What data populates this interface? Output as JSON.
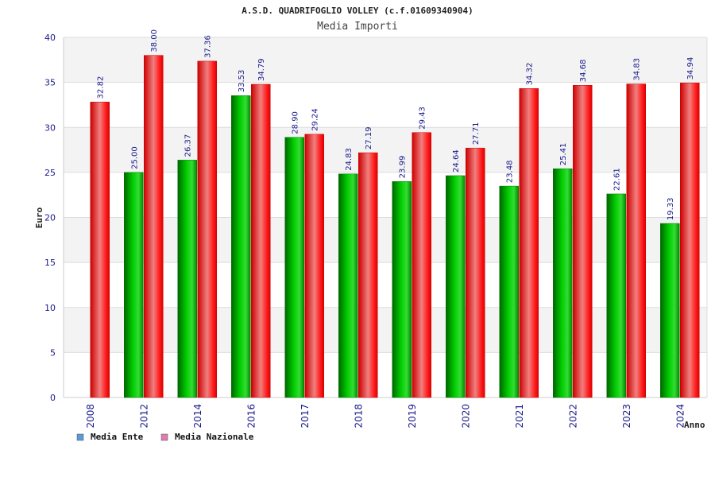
{
  "chart_data": {
    "type": "bar",
    "title": "A.S.D. QUADRIFOGLIO VOLLEY (c.f.01609340904)",
    "subtitle": "Media Importi",
    "xlabel": "Anno",
    "ylabel": "Euro",
    "ylim": [
      0,
      40
    ],
    "yticks": [
      0,
      5,
      10,
      15,
      20,
      25,
      30,
      35,
      40
    ],
    "grid": true,
    "legend_position": "bottom-left",
    "categories": [
      "2008",
      "2012",
      "2014",
      "2016",
      "2017",
      "2018",
      "2019",
      "2020",
      "2021",
      "2022",
      "2023",
      "2024"
    ],
    "series": [
      {
        "name": "Media Ente",
        "color": "#00aa00",
        "legend_color": "#5b9bd5",
        "values": [
          null,
          25.0,
          26.37,
          33.53,
          28.9,
          24.83,
          23.99,
          24.64,
          23.48,
          25.41,
          22.61,
          19.33
        ],
        "labels": [
          "",
          "25.00",
          "26.37",
          "33.53",
          "28.90",
          "24.83",
          "23.99",
          "24.64",
          "23.48",
          "25.41",
          "22.61",
          "19.33"
        ]
      },
      {
        "name": "Media Nazionale",
        "color": "#ee0000",
        "legend_color": "#e07bb0",
        "values": [
          32.82,
          38.0,
          37.36,
          34.79,
          29.24,
          27.19,
          29.43,
          27.71,
          34.32,
          34.68,
          34.83,
          34.94
        ],
        "labels": [
          "32.82",
          "38.00",
          "37.36",
          "34.79",
          "29.24",
          "27.19",
          "29.43",
          "27.71",
          "34.32",
          "34.68",
          "34.83",
          "34.94"
        ]
      }
    ]
  }
}
